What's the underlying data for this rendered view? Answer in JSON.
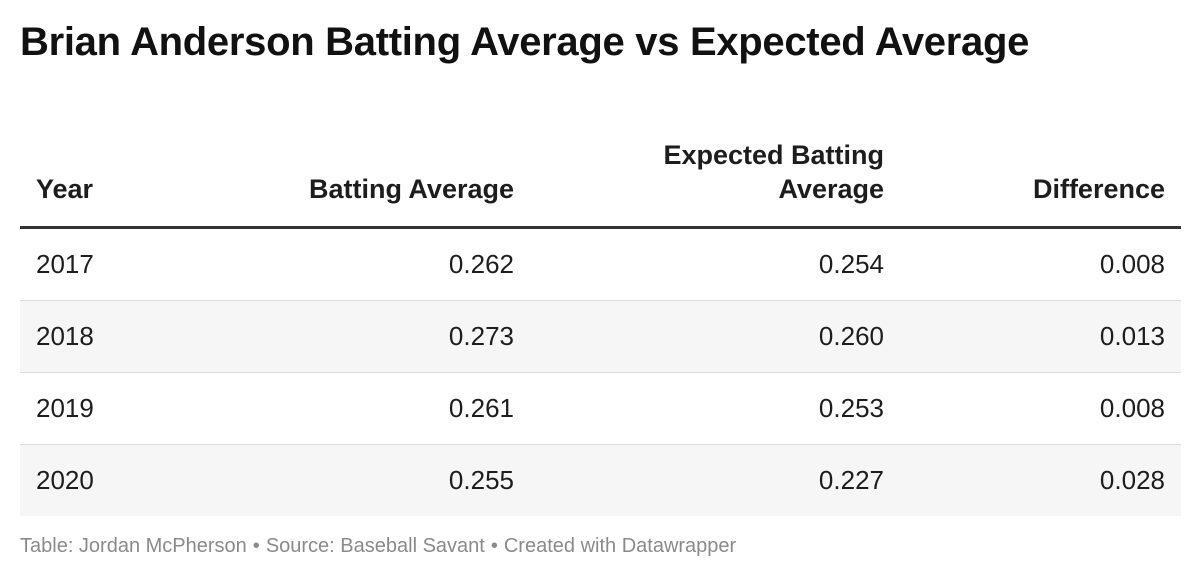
{
  "chart_data": {
    "type": "table",
    "title": "Brian Anderson Batting Average vs Expected Average",
    "columns": [
      "Year",
      "Batting Average",
      "Expected Batting Average",
      "Difference"
    ],
    "rows": [
      [
        "2017",
        "0.262",
        "0.254",
        "0.008"
      ],
      [
        "2018",
        "0.273",
        "0.260",
        "0.013"
      ],
      [
        "2019",
        "0.261",
        "0.253",
        "0.008"
      ],
      [
        "2020",
        "0.255",
        "0.227",
        "0.028"
      ]
    ]
  },
  "header": {
    "expected_line1": "Expected Batting",
    "expected_line2": "Average"
  },
  "footer": {
    "table_credit": "Table: Jordan McPherson",
    "source": "Source: Baseball Savant",
    "created_with": "Created with Datawrapper",
    "separator": "•"
  }
}
